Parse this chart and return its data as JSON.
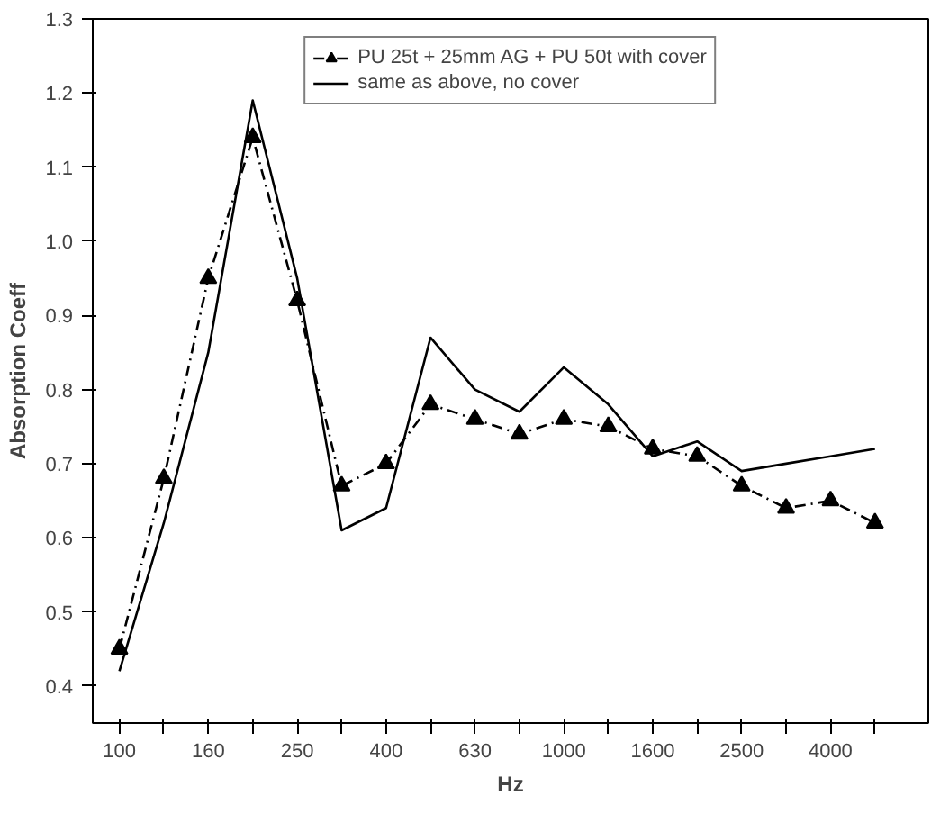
{
  "chart_data": {
    "type": "line",
    "xlabel": "Hz",
    "ylabel": "Absorption Coeff",
    "categories": [
      "100",
      null,
      "160",
      null,
      "250",
      null,
      "400",
      null,
      "630",
      null,
      "1000",
      null,
      "1600",
      null,
      "2500",
      null,
      "4000",
      null
    ],
    "series": [
      {
        "name": "PU 25t + 25mm AG + PU 50t with cover",
        "color": "#000000",
        "marker": "triangle",
        "line_style": "dashed",
        "values": [
          0.45,
          0.68,
          0.95,
          1.14,
          0.92,
          0.67,
          0.7,
          0.78,
          0.76,
          0.74,
          0.76,
          0.75,
          0.72,
          0.71,
          0.67,
          0.64,
          0.65,
          0.62
        ]
      },
      {
        "name": "same as above, no cover",
        "color": "#000000",
        "marker": "none",
        "line_style": "solid",
        "values": [
          0.42,
          0.62,
          0.85,
          1.19,
          0.95,
          0.61,
          0.64,
          0.87,
          0.8,
          0.77,
          0.83,
          0.78,
          0.71,
          0.73,
          0.69,
          0.7,
          0.71,
          0.72
        ]
      }
    ],
    "ylim": [
      0.35,
      1.3
    ],
    "yticks": [
      0.4,
      0.5,
      0.6,
      0.7,
      0.8,
      0.9,
      {
        "value": 1.0,
        "label": "1.0"
      },
      1.1,
      1.2,
      1.3
    ],
    "grid": false,
    "legend": "top"
  }
}
